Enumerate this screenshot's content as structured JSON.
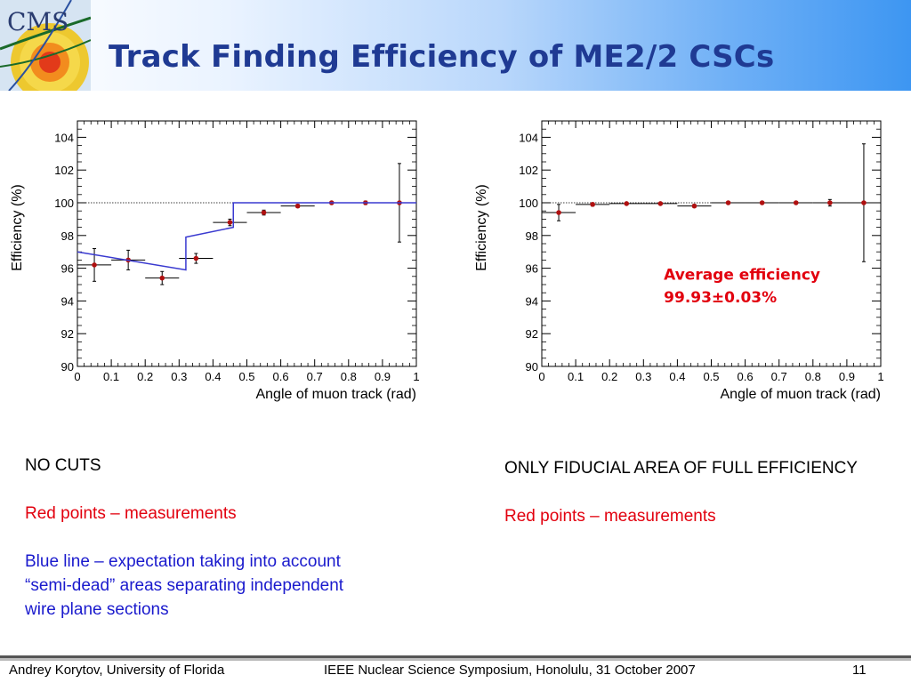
{
  "slide": {
    "title": "Track Finding Efficiency of ME2/2 CSCs",
    "logo_text": "CMS"
  },
  "left_text": {
    "line1": "NO CUTS",
    "line2": "Red points – measurements",
    "line3": "Blue line – expectation taking into account",
    "line4": "“semi-dead” areas separating independent",
    "line5": "wire plane sections"
  },
  "right_text": {
    "line1": "ONLY FIDUCIAL AREA OF FULL EFFICIENCY",
    "line2": "Red points – measurements"
  },
  "footer": {
    "author": "Andrey Korytov, University of Florida",
    "conference": "IEEE Nuclear Science Symposium, Honolulu, 31 October 2007",
    "page": "11"
  },
  "colors": {
    "title": "#1f3a93",
    "red_text": "#e2000e",
    "blue_text": "#1a1acd",
    "marker": "#b01010",
    "expectation_line": "#3a3ad0"
  },
  "chart_data": [
    {
      "type": "scatter",
      "xlabel": "Angle of muon track (rad)",
      "ylabel": "Efficiency (%)",
      "xlim": [
        0,
        1
      ],
      "ylim": [
        90,
        105
      ],
      "xticks": [
        "0",
        "0.1",
        "0.2",
        "0.3",
        "0.4",
        "0.5",
        "0.6",
        "0.7",
        "0.8",
        "0.9",
        "1"
      ],
      "yticks": [
        "90",
        "92",
        "94",
        "96",
        "98",
        "100",
        "102",
        "104"
      ],
      "reference_line": 100,
      "series": [
        {
          "values": [
            {
              "x": 0.05,
              "y": 96.2,
              "yerr": 1.0
            },
            {
              "x": 0.15,
              "y": 96.5,
              "yerr": 0.6
            },
            {
              "x": 0.25,
              "y": 95.4,
              "yerr": 0.4
            },
            {
              "x": 0.35,
              "y": 96.6,
              "yerr": 0.3
            },
            {
              "x": 0.45,
              "y": 98.8,
              "yerr": 0.2
            },
            {
              "x": 0.55,
              "y": 99.4,
              "yerr": 0.15
            },
            {
              "x": 0.65,
              "y": 99.8,
              "yerr": 0.1
            },
            {
              "x": 0.75,
              "y": 100.0,
              "yerr": 0.0
            },
            {
              "x": 0.85,
              "y": 100.0,
              "yerr": 0.1
            },
            {
              "x": 0.95,
              "y": 100.0,
              "yerr": 2.4
            }
          ]
        },
        {
          "type": "line",
          "values": [
            {
              "x": 0.0,
              "y": 97.0
            },
            {
              "x": 0.32,
              "y": 95.9
            },
            {
              "x": 0.32,
              "y": 97.9
            },
            {
              "x": 0.46,
              "y": 98.5
            },
            {
              "x": 0.46,
              "y": 100.0
            },
            {
              "x": 1.0,
              "y": 100.0
            }
          ]
        }
      ]
    },
    {
      "type": "scatter",
      "xlabel": "Angle of muon track (rad)",
      "ylabel": "Efficiency (%)",
      "xlim": [
        0,
        1
      ],
      "ylim": [
        90,
        105
      ],
      "xticks": [
        "0",
        "0.1",
        "0.2",
        "0.3",
        "0.4",
        "0.5",
        "0.6",
        "0.7",
        "0.8",
        "0.9",
        "1"
      ],
      "yticks": [
        "90",
        "92",
        "94",
        "96",
        "98",
        "100",
        "102",
        "104"
      ],
      "reference_line": 100,
      "annotation": {
        "line1": "Average efficiency",
        "line2": "99.93±0.03%"
      },
      "series": [
        {
          "values": [
            {
              "x": 0.05,
              "y": 99.4,
              "yerr": 0.5
            },
            {
              "x": 0.15,
              "y": 99.9,
              "yerr": 0.1
            },
            {
              "x": 0.25,
              "y": 99.95,
              "yerr": 0.05
            },
            {
              "x": 0.35,
              "y": 99.95,
              "yerr": 0.05
            },
            {
              "x": 0.45,
              "y": 99.8,
              "yerr": 0.1
            },
            {
              "x": 0.55,
              "y": 100.0,
              "yerr": 0.0
            },
            {
              "x": 0.65,
              "y": 100.0,
              "yerr": 0.0
            },
            {
              "x": 0.75,
              "y": 100.0,
              "yerr": 0.0
            },
            {
              "x": 0.85,
              "y": 100.0,
              "yerr": 0.2
            },
            {
              "x": 0.95,
              "y": 100.0,
              "yerr": 3.6
            }
          ]
        }
      ]
    }
  ]
}
